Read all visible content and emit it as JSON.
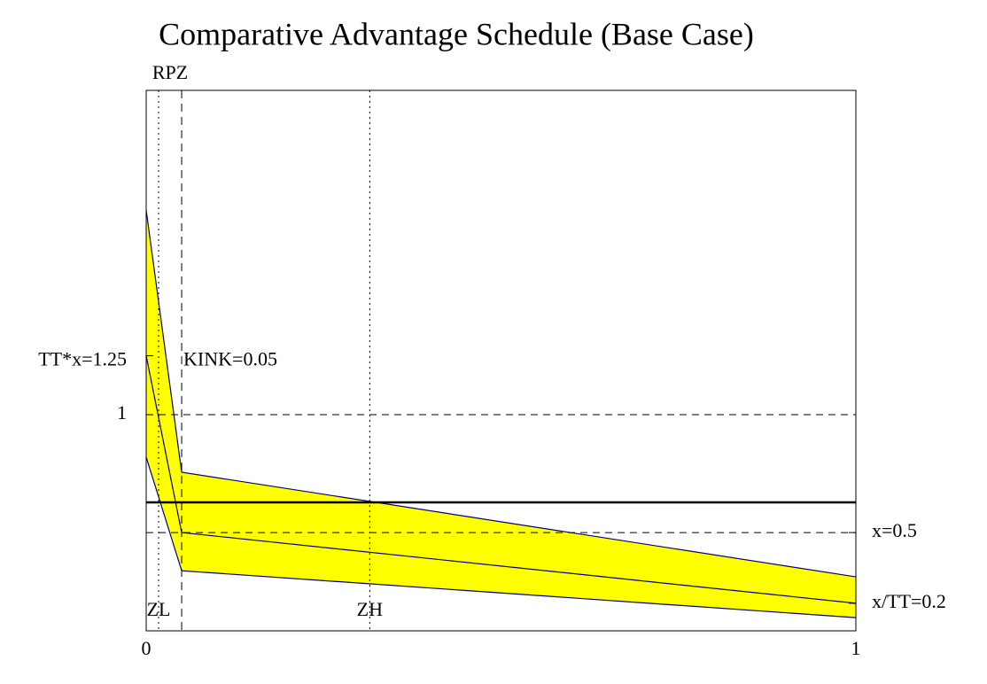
{
  "chart_data": {
    "type": "band",
    "title": "Comparative Advantage Schedule (Base Case)",
    "top_label": "RPZ",
    "xlim": [
      0,
      1
    ],
    "ylim": [
      0.083,
      2.376
    ],
    "xticks": [
      0,
      1
    ],
    "yticks": [
      1
    ],
    "x": [
      0,
      0.05,
      1
    ],
    "upper": [
      1.868,
      0.756,
      0.312
    ],
    "middle": [
      1.25,
      0.5,
      0.2
    ],
    "lower": [
      0.82,
      0.338,
      0.139
    ],
    "fill_color": "#ffff00",
    "line_color": "#000080",
    "reference_level": 0.628,
    "dashed_levels": [
      1,
      0.5
    ],
    "left_labels": [
      {
        "value": 1.25,
        "label": "TT*x=1.25"
      }
    ],
    "right_labels": [
      {
        "value": 0.5,
        "label": "x=0.5"
      },
      {
        "value": 0.2,
        "label": "x/TT=0.2"
      }
    ],
    "vlines": [
      {
        "value": 0.0175,
        "label": "ZL",
        "style": "dotted"
      },
      {
        "value": 0.05,
        "label": "KINK=0.05",
        "style": "dashed"
      },
      {
        "value": 0.315,
        "label": "ZH",
        "style": "dotted"
      }
    ]
  }
}
